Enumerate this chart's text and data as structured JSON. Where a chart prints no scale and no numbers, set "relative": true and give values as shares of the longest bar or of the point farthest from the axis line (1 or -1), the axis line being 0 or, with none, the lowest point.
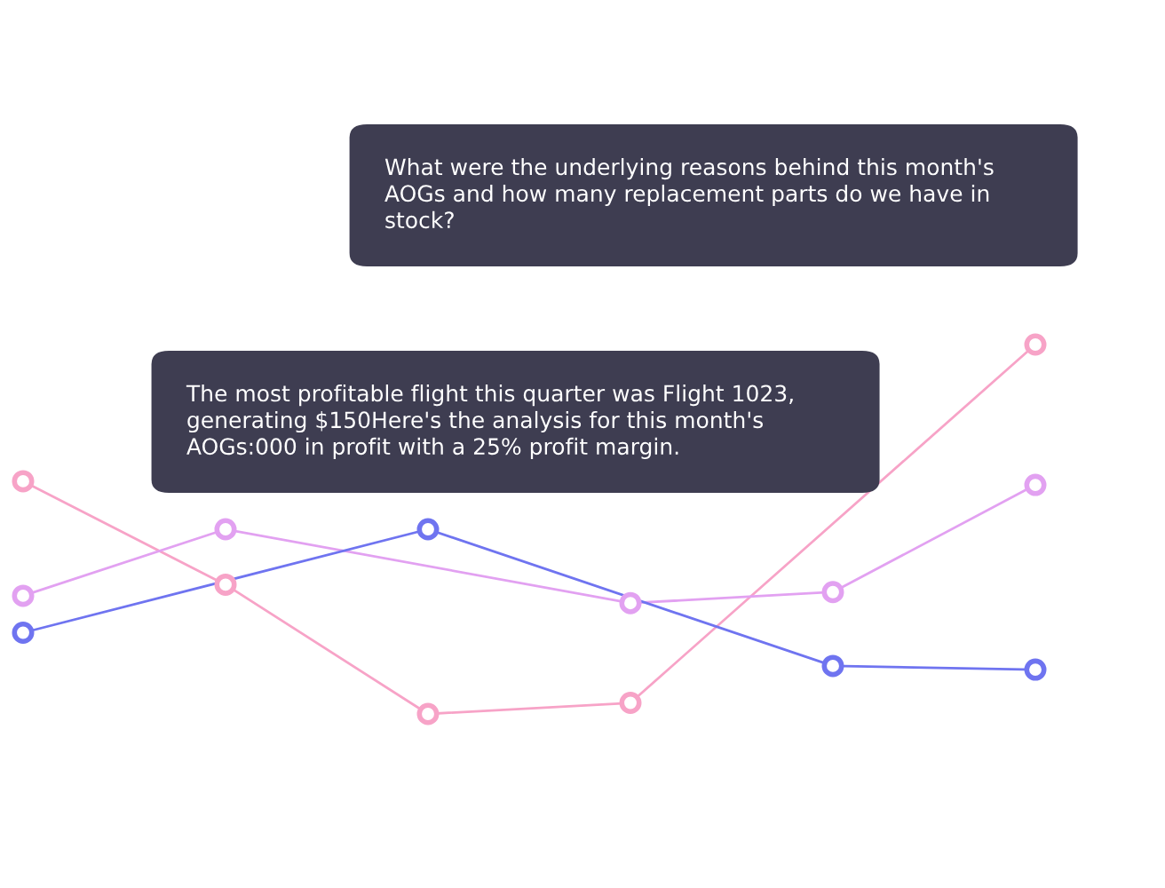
{
  "chart_data": {
    "type": "line",
    "relative": true,
    "marker": "circle",
    "categories": [
      null,
      null,
      null,
      null,
      null,
      null
    ],
    "series": [
      {
        "color": "#f7a3c7",
        "values": [
          0.63,
          0.35,
          0,
          0.03,
          null,
          1
        ]
      },
      {
        "color": "#e2a1f1",
        "values": [
          0.32,
          0.5,
          null,
          0.3,
          0.33,
          0.62
        ]
      },
      {
        "color": "#6f74f0",
        "values": [
          0.22,
          null,
          0.5,
          null,
          0.13,
          0.12
        ]
      }
    ],
    "annotations": [
      "What were the underlying reasons behind this month's AOGs and how many replacement parts do we have in stock?",
      "The most profitable flight this quarter was Flight 1023, generating $150Here's the analysis for this month's AOGs:000 in profit with a 25% profit margin."
    ]
  }
}
